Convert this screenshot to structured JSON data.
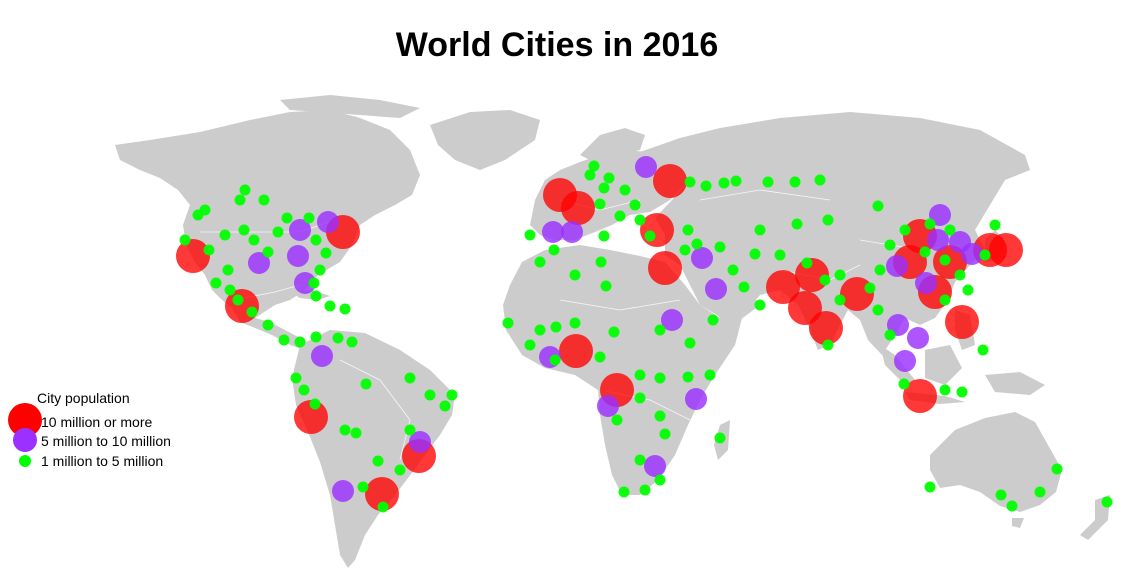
{
  "title": "World Cities in 2016",
  "legend": {
    "title": "City population",
    "items": [
      {
        "key": "large",
        "label": "10 million or more",
        "color": "#ff0000"
      },
      {
        "key": "medium",
        "label": "5 million to 10 million",
        "color": "#9b30ff"
      },
      {
        "key": "small",
        "label": "1 million to 5 million",
        "color": "#00ff00"
      }
    ]
  },
  "colors": {
    "land": "#cccccc",
    "background": "#ffffff"
  }
}
